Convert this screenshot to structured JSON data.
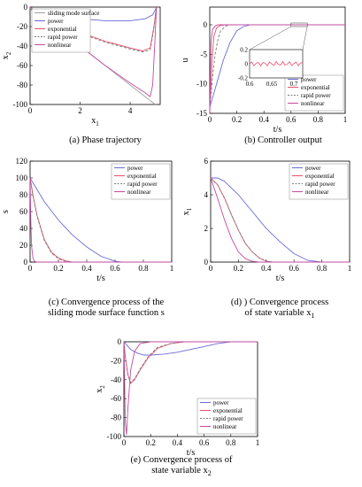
{
  "panels": {
    "a": {
      "caption": "(a) Phase trajectory"
    },
    "b": {
      "caption": "(b) Controller output"
    },
    "c": {
      "caption_line1": "(c) Convergence process of the",
      "caption_line2": "sliding mode surface function s"
    },
    "d": {
      "caption_line1": "(d) ) Convergence process",
      "caption_line2": "of state variable x",
      "caption_sub": "1"
    },
    "e": {
      "caption_line1": "(e) Convergence process of",
      "caption_line2": "state variable x",
      "caption_sub": "2"
    }
  },
  "colors": {
    "power": "#6a6ad8",
    "exponential": "#e8506c",
    "rapid_power": "#7a7a7a",
    "nonlinear": "#c44aa0",
    "surface": "#a0a0a0"
  },
  "chart_data": [
    {
      "id": "a",
      "type": "line",
      "xlabel": "x",
      "xlabel_sub": "1",
      "ylabel": "x",
      "ylabel_sub": "2",
      "xlim": [
        0,
        5.2
      ],
      "ylim": [
        -100,
        0
      ],
      "xticks": [
        0,
        2,
        4
      ],
      "yticks": [
        0,
        -20,
        -40,
        -60,
        -80,
        -100
      ],
      "legend": [
        "sliding mode surface",
        "power",
        "exponential",
        "rapid power",
        "nonlinear"
      ],
      "legend_position": "top-left",
      "series": [
        {
          "name": "sliding mode surface",
          "x": [
            0,
            5
          ],
          "y": [
            0,
            -100
          ]
        },
        {
          "name": "power",
          "x": [
            0,
            1,
            2,
            3,
            4,
            4.6,
            4.9,
            5.0,
            5.05
          ],
          "y": [
            -2,
            -8,
            -12,
            -14,
            -14,
            -12,
            -8,
            -3,
            0
          ]
        },
        {
          "name": "exponential",
          "x": [
            0,
            1,
            2,
            3,
            4,
            4.5,
            4.8,
            4.95,
            5.05
          ],
          "y": [
            -2,
            -15,
            -26,
            -35,
            -42,
            -45,
            -42,
            -20,
            0
          ]
        },
        {
          "name": "rapid power",
          "x": [
            0,
            1,
            2,
            3,
            4,
            4.5,
            4.8,
            4.95,
            5.05
          ],
          "y": [
            -2,
            -15,
            -27,
            -36,
            -43,
            -46,
            -44,
            -22,
            0
          ]
        },
        {
          "name": "nonlinear",
          "x": [
            0,
            1,
            2,
            3,
            4,
            4.6,
            4.8,
            4.9,
            5.0,
            5.05
          ],
          "y": [
            0,
            -20,
            -40,
            -60,
            -78,
            -88,
            -92,
            -80,
            -30,
            0
          ]
        }
      ]
    },
    {
      "id": "b",
      "type": "line",
      "xlabel": "t/s",
      "ylabel": "u",
      "xlim": [
        0,
        1
      ],
      "ylim": [
        -15,
        3
      ],
      "xticks": [
        0,
        0.2,
        0.4,
        0.6,
        0.8,
        1
      ],
      "yticks": [
        0,
        -5,
        -10,
        -15
      ],
      "legend": [
        "power",
        "exponential",
        "rapid power",
        "nonlinear"
      ],
      "legend_position": "bottom-right",
      "inset": {
        "xlim": [
          0.6,
          0.72
        ],
        "ylim": [
          -0.2,
          0.2
        ],
        "xticks": [
          0.6,
          0.65,
          0.7
        ],
        "yticks": [
          0.2,
          0,
          -0.2
        ]
      },
      "series": [
        {
          "name": "power",
          "x": [
            0,
            0.05,
            0.1,
            0.15,
            0.2,
            0.25,
            0.3,
            0.4,
            1
          ],
          "y": [
            -14,
            -10,
            -6,
            -3,
            -1,
            -0.3,
            0,
            0,
            0
          ]
        },
        {
          "name": "exponential",
          "x": [
            0,
            0.01,
            0.02,
            0.03,
            0.05,
            0.08,
            0.12,
            1
          ],
          "y": [
            -14,
            -10,
            -5,
            -2,
            -0.5,
            -0.1,
            0,
            0
          ]
        },
        {
          "name": "rapid power",
          "x": [
            0,
            0.02,
            0.04,
            0.06,
            0.08,
            0.12,
            0.15,
            1
          ],
          "y": [
            -14,
            -9,
            -5,
            -2.5,
            -1,
            -0.2,
            0,
            0
          ]
        },
        {
          "name": "nonlinear",
          "x": [
            0,
            0.005,
            0.01,
            0.02,
            0.04,
            0.06,
            0.1,
            1
          ],
          "y": [
            -15,
            -8,
            -3,
            -0.8,
            -0.2,
            0,
            0,
            0
          ]
        }
      ]
    },
    {
      "id": "c",
      "type": "line",
      "xlabel": "t/s",
      "ylabel": "s",
      "xlim": [
        0,
        1
      ],
      "ylim": [
        0,
        120
      ],
      "xticks": [
        0,
        0.2,
        0.4,
        0.6,
        0.8,
        1
      ],
      "yticks": [
        0,
        20,
        40,
        60,
        80,
        100,
        120
      ],
      "legend": [
        "power",
        "exponential",
        "rapid power",
        "nonlinear"
      ],
      "legend_position": "top-right",
      "series": [
        {
          "name": "power",
          "x": [
            0,
            0.1,
            0.2,
            0.3,
            0.4,
            0.5,
            0.6,
            0.65,
            1
          ],
          "y": [
            100,
            72,
            50,
            32,
            18,
            7,
            1,
            0,
            0
          ]
        },
        {
          "name": "exponential",
          "x": [
            0,
            0.02,
            0.05,
            0.1,
            0.15,
            0.2,
            0.25,
            0.3,
            1
          ],
          "y": [
            100,
            80,
            55,
            27,
            12,
            5,
            1.5,
            0,
            0
          ]
        },
        {
          "name": "rapid power",
          "x": [
            0,
            0.02,
            0.05,
            0.1,
            0.15,
            0.2,
            0.25,
            0.3,
            1
          ],
          "y": [
            100,
            79,
            54,
            26,
            11,
            4,
            1,
            0,
            0
          ]
        },
        {
          "name": "nonlinear",
          "x": [
            0,
            0.005,
            0.01,
            0.02,
            0.03,
            0.05,
            1
          ],
          "y": [
            100,
            50,
            20,
            5,
            1,
            0,
            0
          ]
        }
      ]
    },
    {
      "id": "d",
      "type": "line",
      "xlabel": "t/s",
      "ylabel": "x",
      "ylabel_sub": "1",
      "xlim": [
        0,
        1
      ],
      "ylim": [
        0,
        6
      ],
      "xticks": [
        0,
        0.2,
        0.4,
        0.6,
        0.8,
        1
      ],
      "yticks": [
        0,
        2,
        4,
        6
      ],
      "legend": [
        "power",
        "exponential",
        "rapid power",
        "nonlinear"
      ],
      "legend_position": "top-right",
      "series": [
        {
          "name": "power",
          "x": [
            0,
            0.05,
            0.1,
            0.2,
            0.3,
            0.4,
            0.5,
            0.6,
            0.7,
            0.8,
            1
          ],
          "y": [
            5,
            5,
            4.8,
            4,
            3,
            2,
            1.2,
            0.5,
            0.1,
            0,
            0
          ]
        },
        {
          "name": "exponential",
          "x": [
            0,
            0.05,
            0.1,
            0.15,
            0.2,
            0.25,
            0.3,
            0.35,
            0.4,
            0.45,
            1
          ],
          "y": [
            5,
            4.6,
            3.8,
            2.8,
            1.9,
            1.1,
            0.6,
            0.25,
            0.05,
            0,
            0
          ]
        },
        {
          "name": "rapid power",
          "x": [
            0,
            0.05,
            0.1,
            0.15,
            0.2,
            0.25,
            0.3,
            0.35,
            0.4,
            0.45,
            1
          ],
          "y": [
            5,
            4.6,
            3.8,
            2.8,
            1.9,
            1.1,
            0.6,
            0.25,
            0.05,
            0,
            0
          ]
        },
        {
          "name": "nonlinear",
          "x": [
            0,
            0.05,
            0.1,
            0.15,
            0.2,
            0.25,
            0.3,
            0.35,
            1
          ],
          "y": [
            5,
            3.8,
            2.5,
            1.4,
            0.6,
            0.2,
            0.05,
            0,
            0
          ]
        }
      ]
    },
    {
      "id": "e",
      "type": "line",
      "xlabel": "t/s",
      "ylabel": "x",
      "ylabel_sub": "2",
      "xlim": [
        0,
        1
      ],
      "ylim": [
        -100,
        0
      ],
      "xticks": [
        0,
        0.2,
        0.4,
        0.6,
        0.8,
        1
      ],
      "yticks": [
        0,
        -20,
        -40,
        -60,
        -80,
        -100
      ],
      "legend": [
        "power",
        "exponential",
        "rapid power",
        "nonlinear"
      ],
      "legend_position": "bottom-right",
      "series": [
        {
          "name": "power",
          "x": [
            0,
            0.05,
            0.1,
            0.15,
            0.2,
            0.3,
            0.4,
            0.5,
            0.6,
            0.7,
            0.8,
            1
          ],
          "y": [
            0,
            -8,
            -12,
            -14,
            -14,
            -13,
            -11,
            -8,
            -5,
            -2,
            0,
            0
          ]
        },
        {
          "name": "exponential",
          "x": [
            0,
            0.01,
            0.03,
            0.05,
            0.08,
            0.12,
            0.18,
            0.25,
            0.35,
            0.45,
            1
          ],
          "y": [
            0,
            -15,
            -35,
            -44,
            -40,
            -30,
            -17,
            -7,
            -2,
            0,
            0
          ]
        },
        {
          "name": "rapid power",
          "x": [
            0,
            0.01,
            0.03,
            0.05,
            0.08,
            0.12,
            0.18,
            0.25,
            0.35,
            0.45,
            1
          ],
          "y": [
            0,
            -15,
            -34,
            -43,
            -39,
            -29,
            -16,
            -6,
            -2,
            0,
            0
          ]
        },
        {
          "name": "nonlinear",
          "x": [
            0,
            0.005,
            0.01,
            0.02,
            0.03,
            0.05,
            0.08,
            0.12,
            0.2,
            1
          ],
          "y": [
            0,
            -40,
            -85,
            -98,
            -70,
            -30,
            -10,
            -2,
            0,
            0
          ]
        }
      ]
    }
  ]
}
